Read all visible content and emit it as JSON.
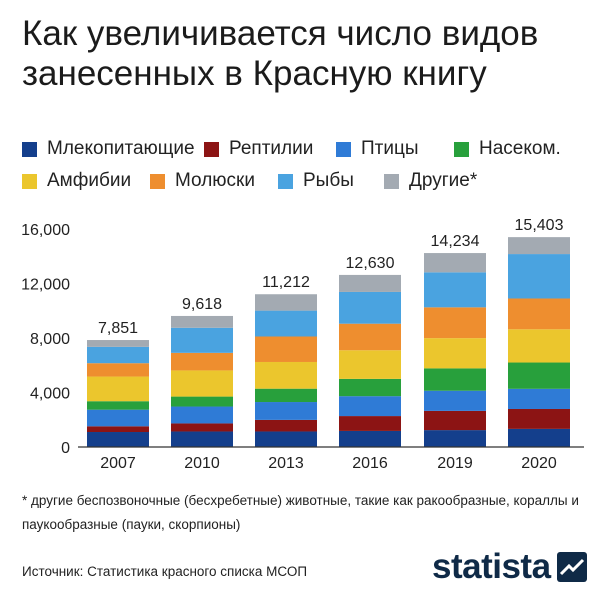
{
  "title": "Как увеличивается число видов занесенных в Красную книгу",
  "legend": [
    {
      "label": "Млекопитающие",
      "color": "#143f8c"
    },
    {
      "label": "Рептилии",
      "color": "#8c1414"
    },
    {
      "label": "Птицы",
      "color": "#2f7bd6"
    },
    {
      "label": "Насеком.",
      "color": "#28a03c"
    },
    {
      "label": "Амфибии",
      "color": "#ebc62d"
    },
    {
      "label": "Молюски",
      "color": "#ee8e2f"
    },
    {
      "label": "Рыбы",
      "color": "#4aa3e0"
    },
    {
      "label": "Другие*",
      "color": "#a3aab2"
    }
  ],
  "chart_data": {
    "type": "bar",
    "stacked": true,
    "categories": [
      "2007",
      "2010",
      "2013",
      "2016",
      "2019",
      "2020"
    ],
    "ylim": [
      0,
      16000
    ],
    "yticks": [
      0,
      4000,
      8000,
      12000,
      16000
    ],
    "ytick_labels": [
      "0",
      "4,000",
      "8,000",
      "12,000",
      "16,000"
    ],
    "totals": [
      "7,851",
      "9,618",
      "11,212",
      "12,630",
      "14,234",
      "15,403"
    ],
    "grid": false,
    "series": [
      {
        "name": "Млекопитающие",
        "color": "#143f8c",
        "values": [
          1100,
          1140,
          1140,
          1180,
          1240,
          1330
        ]
      },
      {
        "name": "Рептилии",
        "color": "#8c1414",
        "values": [
          420,
          590,
          850,
          1090,
          1410,
          1460
        ]
      },
      {
        "name": "Птицы",
        "color": "#2f7bd6",
        "values": [
          1220,
          1240,
          1310,
          1460,
          1480,
          1480
        ]
      },
      {
        "name": "Насеком.",
        "color": "#28a03c",
        "values": [
          620,
          730,
          980,
          1270,
          1640,
          1930
        ]
      },
      {
        "name": "Амфибии",
        "color": "#ebc62d",
        "values": [
          1810,
          1920,
          1960,
          2100,
          2220,
          2440
        ]
      },
      {
        "name": "Молюски",
        "color": "#ee8e2f",
        "values": [
          980,
          1290,
          1870,
          1950,
          2260,
          2260
        ]
      },
      {
        "name": "Рыбы",
        "color": "#4aa3e0",
        "values": [
          1200,
          1840,
          1900,
          2330,
          2570,
          3260
        ]
      },
      {
        "name": "Другие*",
        "color": "#a3aab2",
        "values": [
          501,
          868,
          1202,
          1250,
          1414,
          1243
        ]
      }
    ]
  },
  "footnote": "* другие беспозвоночные (бесхребетные) животные, такие как ракообразные, кораллы и паукообразные (пауки, скорпионы)",
  "source": "Источник: Статистика красного списка МСОП",
  "brand": "statista"
}
